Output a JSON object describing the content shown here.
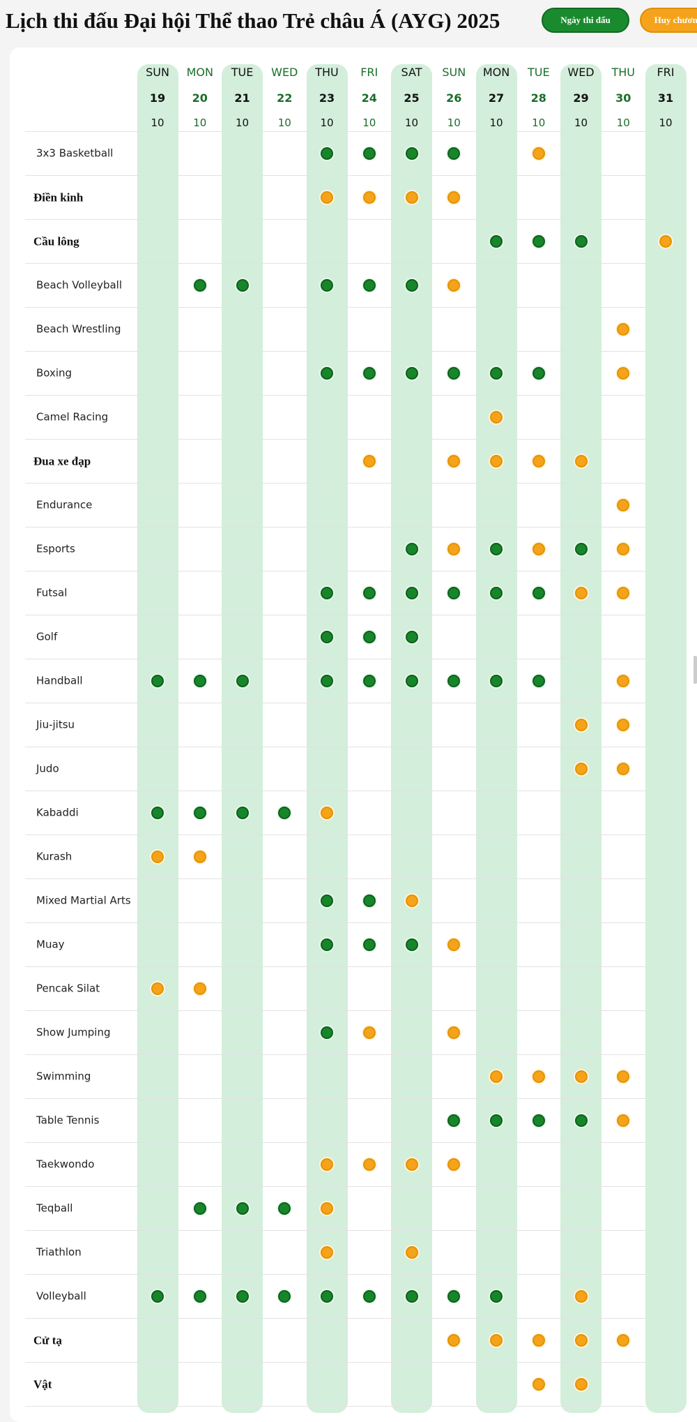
{
  "title": "Lịch thi đấu Đại hội Thể thao Trẻ châu Á (AYG) 2025",
  "legend": {
    "competition_day": "Ngày thi đấu",
    "medal": "Huy chương"
  },
  "colors": {
    "competition_day": "#17862b",
    "medal": "#f5a31a",
    "stripe": "#d3eedb"
  },
  "days": [
    {
      "name": "SUN",
      "date": "19",
      "count": "10"
    },
    {
      "name": "MON",
      "date": "20",
      "count": "10"
    },
    {
      "name": "TUE",
      "date": "21",
      "count": "10"
    },
    {
      "name": "WED",
      "date": "22",
      "count": "10"
    },
    {
      "name": "THU",
      "date": "23",
      "count": "10"
    },
    {
      "name": "FRI",
      "date": "24",
      "count": "10"
    },
    {
      "name": "SAT",
      "date": "25",
      "count": "10"
    },
    {
      "name": "SUN",
      "date": "26",
      "count": "10"
    },
    {
      "name": "MON",
      "date": "27",
      "count": "10"
    },
    {
      "name": "TUE",
      "date": "28",
      "count": "10"
    },
    {
      "name": "WED",
      "date": "29",
      "count": "10"
    },
    {
      "name": "THU",
      "date": "30",
      "count": "10"
    },
    {
      "name": "FRI",
      "date": "31",
      "count": "10"
    }
  ],
  "schedule_legend": {
    "g": "Ngày thi đấu",
    "o": "Huy chương",
    ".": ""
  },
  "sports": [
    {
      "name": "3x3 Basketball",
      "bold": false,
      "days": "....gggg.o..."
    },
    {
      "name": "Điền kinh",
      "bold": true,
      "days": "....oooo....."
    },
    {
      "name": "Cầu lông",
      "bold": true,
      "days": "........ggg.o"
    },
    {
      "name": "Beach Volleyball",
      "bold": false,
      "days": ".gg.gggo....."
    },
    {
      "name": "Beach Wrestling",
      "bold": false,
      "days": "...........o."
    },
    {
      "name": "Boxing",
      "bold": false,
      "days": "....gggggg.o."
    },
    {
      "name": "Camel Racing",
      "bold": false,
      "days": "........o...."
    },
    {
      "name": "Đua xe đạp",
      "bold": true,
      "days": ".....o.oooo.."
    },
    {
      "name": "Endurance",
      "bold": false,
      "days": "...........o."
    },
    {
      "name": "Esports",
      "bold": false,
      "days": "......gogogo."
    },
    {
      "name": "Futsal",
      "bold": false,
      "days": "....ggggggoo."
    },
    {
      "name": "Golf",
      "bold": false,
      "days": "....ggg......"
    },
    {
      "name": "Handball",
      "bold": false,
      "days": "ggg.gggggg.o."
    },
    {
      "name": "Jiu-jitsu",
      "bold": false,
      "days": "..........oo."
    },
    {
      "name": "Judo",
      "bold": false,
      "days": "..........oo."
    },
    {
      "name": "Kabaddi",
      "bold": false,
      "days": "ggggo........"
    },
    {
      "name": "Kurash",
      "bold": false,
      "days": "oo..........."
    },
    {
      "name": "Mixed Martial Arts",
      "bold": false,
      "days": "....ggo......"
    },
    {
      "name": "Muay",
      "bold": false,
      "days": "....gggo....."
    },
    {
      "name": "Pencak Silat",
      "bold": false,
      "days": "oo..........."
    },
    {
      "name": "Show Jumping",
      "bold": false,
      "days": "....go.o....."
    },
    {
      "name": "Swimming",
      "bold": false,
      "days": "........oooo."
    },
    {
      "name": "Table Tennis",
      "bold": false,
      "days": ".......ggggo."
    },
    {
      "name": "Taekwondo",
      "bold": false,
      "days": "....oooo....."
    },
    {
      "name": "Teqball",
      "bold": false,
      "days": ".gggo........"
    },
    {
      "name": "Triathlon",
      "bold": false,
      "days": "....o.o......"
    },
    {
      "name": "Volleyball",
      "bold": false,
      "days": "ggggggggg.o.."
    },
    {
      "name": "Cử tạ",
      "bold": true,
      "days": ".......ooooo."
    },
    {
      "name": "Vật",
      "bold": true,
      "days": ".........oo.."
    }
  ]
}
